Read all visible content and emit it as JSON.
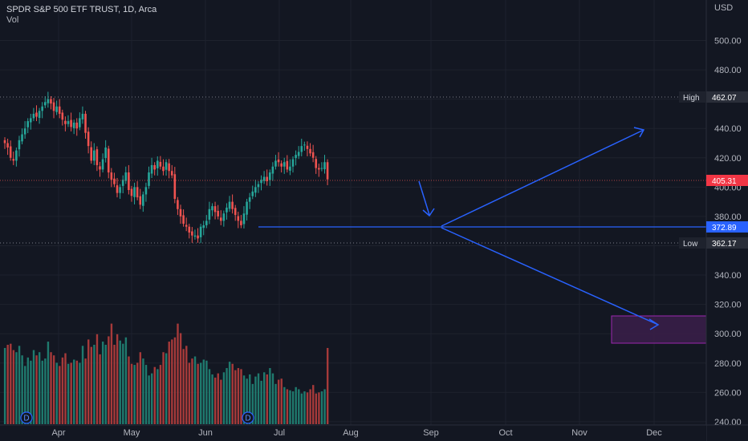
{
  "header": {
    "symbol_line": "SPDR S&P 500 ETF TRUST, 1D, Arca",
    "vol_label": "Vol"
  },
  "colors": {
    "background": "#131722",
    "up": "#26a69a",
    "down": "#ef5350",
    "vol_up": "#1f7a6e",
    "vol_down": "#a63a3a",
    "drawing": "#2962ff",
    "zone_fill": "#3b1f4a",
    "zone_border": "#9c27b0"
  },
  "chart_data": {
    "type": "candlestick",
    "currency_label": "USD",
    "price_ticks": [
      500,
      480,
      460,
      440,
      420,
      400,
      380,
      360,
      340,
      320,
      300,
      280,
      260,
      240
    ],
    "price_tick_labels": [
      "500.00",
      "480.00",
      "",
      "440.00",
      "420.00",
      "400.00",
      "380.00",
      "",
      "340.00",
      "320.00",
      "300.00",
      "280.00",
      "260.00",
      "240.00"
    ],
    "ylim": [
      237,
      520
    ],
    "x_labels": [
      "Apr",
      "May",
      "Jun",
      "Jul",
      "Aug",
      "Sep",
      "Oct",
      "Nov",
      "Dec"
    ],
    "event_markers": [
      "D",
      "D"
    ],
    "levels": {
      "high": {
        "label": "High",
        "value": "462.07"
      },
      "last": {
        "value": "405.31"
      },
      "drawn": {
        "value": "372.89"
      },
      "low": {
        "label": "Low",
        "value": "362.17"
      }
    },
    "closes": [
      430,
      427,
      420,
      418,
      425,
      432,
      436,
      440,
      445,
      447,
      450,
      448,
      452,
      455,
      458,
      460,
      457,
      452,
      455,
      450,
      446,
      443,
      445,
      441,
      444,
      440,
      447,
      450,
      437,
      428,
      418,
      425,
      415,
      412,
      419,
      427,
      410,
      405,
      402,
      396,
      400,
      405,
      410,
      398,
      394,
      400,
      393,
      388,
      395,
      400,
      410,
      415,
      412,
      418,
      414,
      411,
      417,
      411,
      408,
      392,
      385,
      380,
      375,
      373,
      369,
      367,
      367,
      365,
      373,
      374,
      377,
      385,
      387,
      383,
      380,
      377,
      382,
      386,
      390,
      385,
      381,
      377,
      374,
      382,
      390,
      393,
      397,
      400,
      402,
      405,
      407,
      404,
      410,
      414,
      418,
      417,
      414,
      417,
      412,
      414,
      419,
      422,
      424,
      428,
      429,
      426,
      423,
      420,
      413,
      412,
      413,
      417,
      405.31
    ],
    "volume": [
      72,
      75,
      76,
      70,
      68,
      74,
      65,
      55,
      63,
      60,
      70,
      65,
      68,
      60,
      62,
      78,
      68,
      65,
      58,
      55,
      63,
      67,
      57,
      58,
      61,
      60,
      58,
      74,
      62,
      80,
      73,
      75,
      85,
      66,
      78,
      75,
      83,
      95,
      75,
      85,
      79,
      76,
      82,
      64,
      57,
      56,
      58,
      68,
      62,
      56,
      46,
      48,
      54,
      52,
      56,
      68,
      67,
      78,
      80,
      82,
      95,
      86,
      71,
      74,
      58,
      62,
      64,
      57,
      58,
      61,
      60,
      52,
      47,
      44,
      48,
      42,
      49,
      53,
      59,
      57,
      51,
      53,
      52,
      46,
      43,
      47,
      38,
      45,
      48,
      41,
      49,
      47,
      53,
      48,
      38,
      42,
      43,
      35,
      33,
      32,
      31,
      35,
      33,
      29,
      31,
      30,
      33,
      37,
      29,
      30,
      31,
      33,
      72
    ],
    "volume_unit": "relative"
  }
}
